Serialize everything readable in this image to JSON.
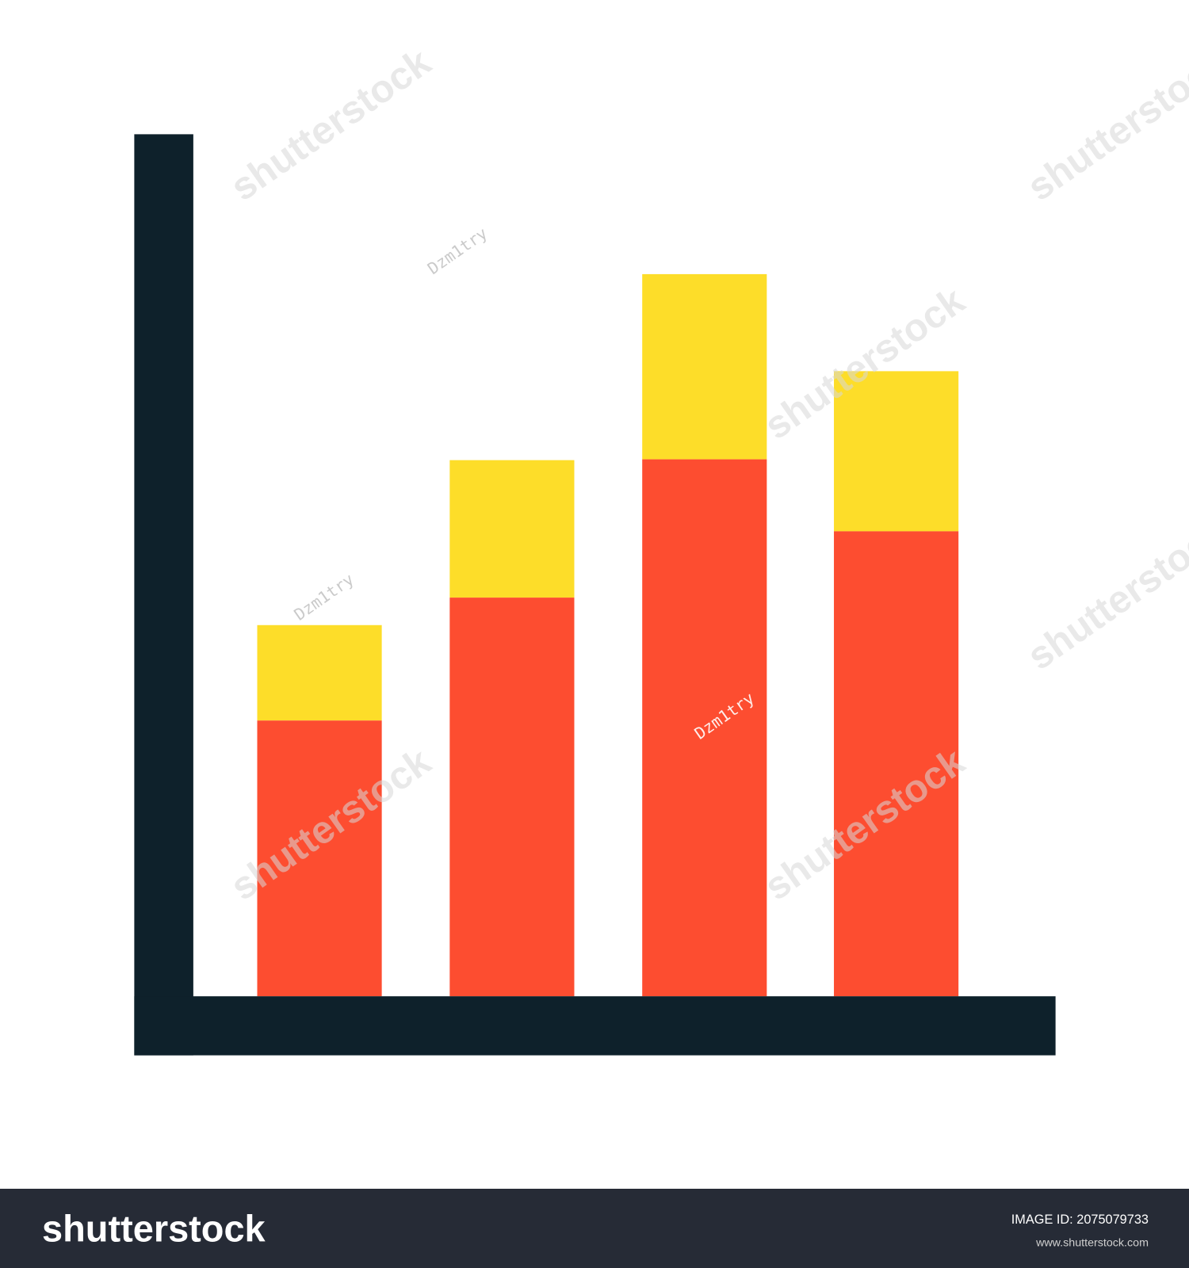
{
  "footer": {
    "logo": "shutterstock",
    "image_id": "IMAGE ID: 2075079733",
    "url": "www.shutterstock.com"
  },
  "watermarks": {
    "brand": "shutterstock",
    "author": "Dzm1try"
  }
}
